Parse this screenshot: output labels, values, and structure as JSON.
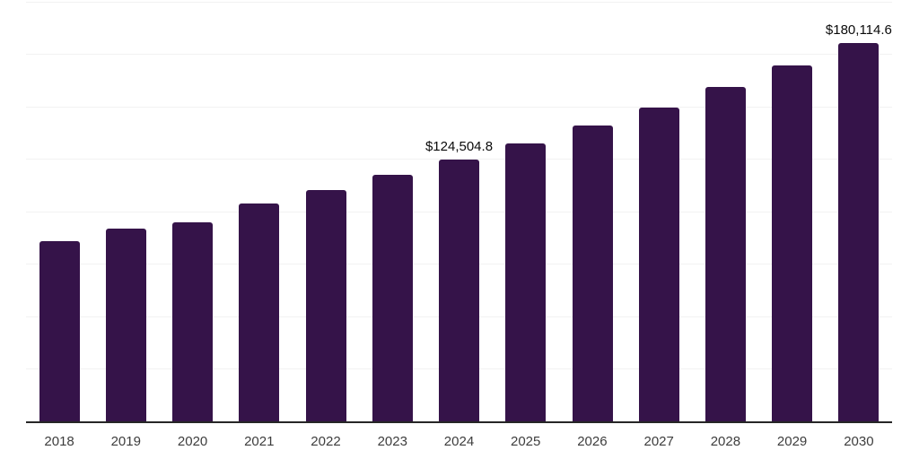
{
  "chart_data": {
    "type": "bar",
    "title": "",
    "xlabel": "",
    "ylabel": "",
    "categories": [
      "2018",
      "2019",
      "2020",
      "2021",
      "2022",
      "2023",
      "2024",
      "2025",
      "2026",
      "2027",
      "2028",
      "2029",
      "2030"
    ],
    "values": [
      85800,
      91600,
      94700,
      103900,
      110300,
      117400,
      124504.8,
      132200,
      140700,
      149500,
      159100,
      169400,
      180114.6
    ],
    "data_labels": [
      {
        "category": "2024",
        "text": "$124,504.8"
      },
      {
        "category": "2030",
        "text": "$180,114.6"
      }
    ],
    "ylim": [
      0,
      200000
    ],
    "gridline_step": 25000,
    "grid": true,
    "legend_position": "none",
    "y_axis_tick_labels": "none",
    "colors": {
      "bar": "#351349",
      "axis": "#262626",
      "gridline": "#f2f2f2",
      "data_label": "#0a0a0a",
      "tick_label": "#3d3d3d",
      "background": "#ffffff"
    }
  }
}
